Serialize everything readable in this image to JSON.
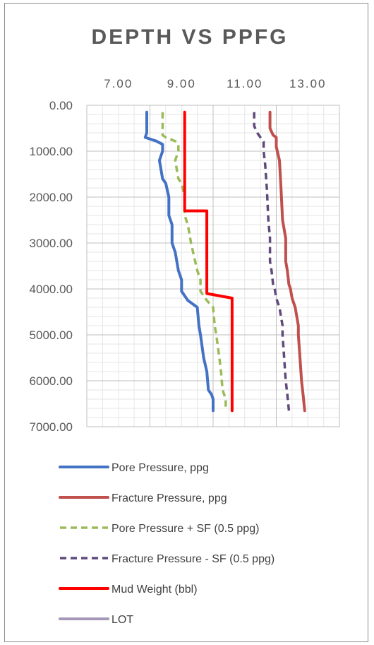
{
  "chart_data": {
    "type": "line",
    "title": "DEPTH VS PPFG",
    "x_axis": {
      "position": "top",
      "min": 6.0,
      "max": 14.0,
      "major": 2,
      "minor": 0.5,
      "tick_values": [
        7,
        9,
        11,
        13
      ],
      "tick_labels": [
        "7.00",
        "9.00",
        "11.00",
        "13.00"
      ]
    },
    "y_axis": {
      "min": 0,
      "max": 7000,
      "reversed": true,
      "major": 1000,
      "minor": 200,
      "tick_values": [
        0,
        1000,
        2000,
        3000,
        4000,
        5000,
        6000,
        7000
      ],
      "tick_labels": [
        "0.00",
        "1000.00",
        "2000.00",
        "3000.00",
        "4000.00",
        "5000.00",
        "6000.00",
        "7000.00"
      ]
    },
    "grid": true,
    "legend_position": "bottom",
    "series": [
      {
        "name": "Pore Pressure, ppg",
        "color": "#4472c4",
        "dash": "solid",
        "points": [
          [
            7.9,
            150
          ],
          [
            7.9,
            600
          ],
          [
            7.85,
            700
          ],
          [
            8.2,
            780
          ],
          [
            8.4,
            850
          ],
          [
            8.4,
            1000
          ],
          [
            8.3,
            1200
          ],
          [
            8.4,
            1600
          ],
          [
            8.5,
            1700
          ],
          [
            8.6,
            2000
          ],
          [
            8.6,
            2400
          ],
          [
            8.7,
            2600
          ],
          [
            8.7,
            3000
          ],
          [
            8.8,
            3200
          ],
          [
            8.9,
            3600
          ],
          [
            9.0,
            3800
          ],
          [
            9.0,
            4050
          ],
          [
            9.2,
            4250
          ],
          [
            9.5,
            4400
          ],
          [
            9.55,
            4800
          ],
          [
            9.6,
            5000
          ],
          [
            9.7,
            5500
          ],
          [
            9.8,
            5800
          ],
          [
            9.85,
            6200
          ],
          [
            9.95,
            6300
          ],
          [
            10.0,
            6400
          ],
          [
            10.0,
            6650
          ]
        ]
      },
      {
        "name": "Fracture Pressure, ppg",
        "color": "#c0504d",
        "dash": "solid",
        "points": [
          [
            11.8,
            150
          ],
          [
            11.8,
            500
          ],
          [
            11.9,
            650
          ],
          [
            12.0,
            700
          ],
          [
            12.0,
            900
          ],
          [
            12.1,
            1200
          ],
          [
            12.15,
            1800
          ],
          [
            12.2,
            2500
          ],
          [
            12.3,
            2900
          ],
          [
            12.3,
            3400
          ],
          [
            12.35,
            3600
          ],
          [
            12.4,
            3900
          ],
          [
            12.45,
            4000
          ],
          [
            12.5,
            4200
          ],
          [
            12.55,
            4300
          ],
          [
            12.6,
            4400
          ],
          [
            12.7,
            4800
          ],
          [
            12.7,
            5000
          ],
          [
            12.75,
            5500
          ],
          [
            12.8,
            6000
          ],
          [
            12.85,
            6300
          ],
          [
            12.9,
            6650
          ]
        ]
      },
      {
        "name": "Pore Pressure + SF (0.5 ppg)",
        "color": "#9bbb59",
        "dash": "dashed",
        "points": [
          [
            8.4,
            150
          ],
          [
            8.4,
            650
          ],
          [
            8.5,
            700
          ],
          [
            8.8,
            780
          ],
          [
            8.9,
            850
          ],
          [
            8.9,
            1000
          ],
          [
            8.8,
            1200
          ],
          [
            8.9,
            1600
          ],
          [
            9.0,
            1700
          ],
          [
            9.1,
            2000
          ],
          [
            9.1,
            2400
          ],
          [
            9.2,
            2600
          ],
          [
            9.3,
            3000
          ],
          [
            9.4,
            3300
          ],
          [
            9.5,
            3600
          ],
          [
            9.6,
            3800
          ],
          [
            9.6,
            4050
          ],
          [
            9.8,
            4250
          ],
          [
            10.0,
            4400
          ],
          [
            10.05,
            4800
          ],
          [
            10.1,
            5000
          ],
          [
            10.2,
            5500
          ],
          [
            10.25,
            5800
          ],
          [
            10.3,
            6200
          ],
          [
            10.35,
            6300
          ],
          [
            10.4,
            6400
          ],
          [
            10.4,
            6650
          ]
        ]
      },
      {
        "name": "Fracture Pressure - SF (0.5 ppg)",
        "color": "#604a7b",
        "dash": "dashed",
        "points": [
          [
            11.3,
            150
          ],
          [
            11.3,
            450
          ],
          [
            11.4,
            600
          ],
          [
            11.5,
            700
          ],
          [
            11.6,
            800
          ],
          [
            11.6,
            1000
          ],
          [
            11.65,
            1300
          ],
          [
            11.7,
            1800
          ],
          [
            11.75,
            2500
          ],
          [
            11.8,
            2900
          ],
          [
            11.8,
            3400
          ],
          [
            11.85,
            3600
          ],
          [
            11.9,
            3900
          ],
          [
            11.95,
            4000
          ],
          [
            12.0,
            4200
          ],
          [
            12.05,
            4300
          ],
          [
            12.1,
            4400
          ],
          [
            12.2,
            4800
          ],
          [
            12.2,
            5000
          ],
          [
            12.25,
            5500
          ],
          [
            12.3,
            6000
          ],
          [
            12.35,
            6300
          ],
          [
            12.4,
            6650
          ]
        ]
      },
      {
        "name": "Mud Weight (bbl)",
        "color": "#ff0000",
        "dash": "solid",
        "points": [
          [
            9.1,
            150
          ],
          [
            9.1,
            2300
          ],
          [
            9.8,
            2300
          ],
          [
            9.8,
            4100
          ],
          [
            10.6,
            4200
          ],
          [
            10.6,
            6650
          ]
        ]
      },
      {
        "name": "LOT",
        "color": "#a497b8",
        "dash": "solid",
        "points": []
      }
    ]
  }
}
